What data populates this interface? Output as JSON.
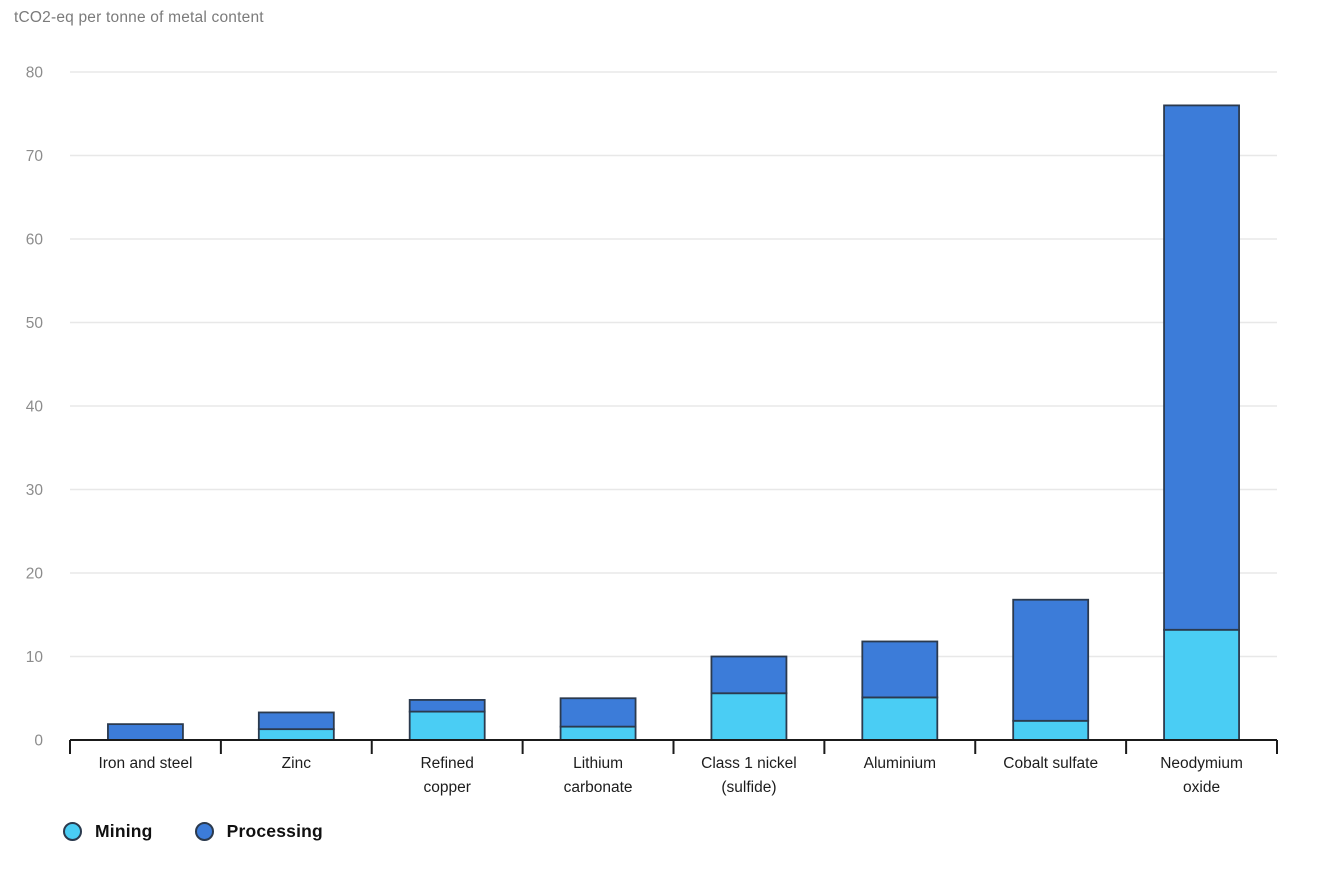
{
  "page": {
    "background": "#ffffff"
  },
  "chart_data": {
    "type": "bar",
    "stacked": true,
    "title": "tCO2-eq per tonne of metal content",
    "categories": [
      "Iron and steel",
      "Zinc",
      "Refined\ncopper",
      "Lithium\ncarbonate",
      "Class 1 nickel\n(sulfide)",
      "Aluminium",
      "Cobalt sulfate",
      "Neodymium\noxide"
    ],
    "series": [
      {
        "name": "Mining",
        "color": "#4ACDF4",
        "values": [
          0,
          1.3,
          3.4,
          1.6,
          5.6,
          5.1,
          2.3,
          13.2
        ]
      },
      {
        "name": "Processing",
        "color": "#3C7CD9",
        "values": [
          1.9,
          2.0,
          1.4,
          3.4,
          4.4,
          6.7,
          14.5,
          62.8
        ]
      }
    ],
    "totals": [
      1.9,
      3.3,
      4.8,
      5.0,
      10.0,
      11.8,
      16.8,
      76.0
    ],
    "ylim": [
      0,
      80
    ],
    "yticks": [
      0,
      10,
      20,
      30,
      40,
      50,
      60,
      70,
      80
    ],
    "grid": "horizontal",
    "legend_position": "bottom-left",
    "colors": {
      "bar_border": "#2b3a4e",
      "axis": "#1a1a1a",
      "gridline": "#e8e8e8",
      "tick_label": "#8c8c8c",
      "category_label": "#1c1c1c",
      "title": "#7b7b7b"
    }
  }
}
